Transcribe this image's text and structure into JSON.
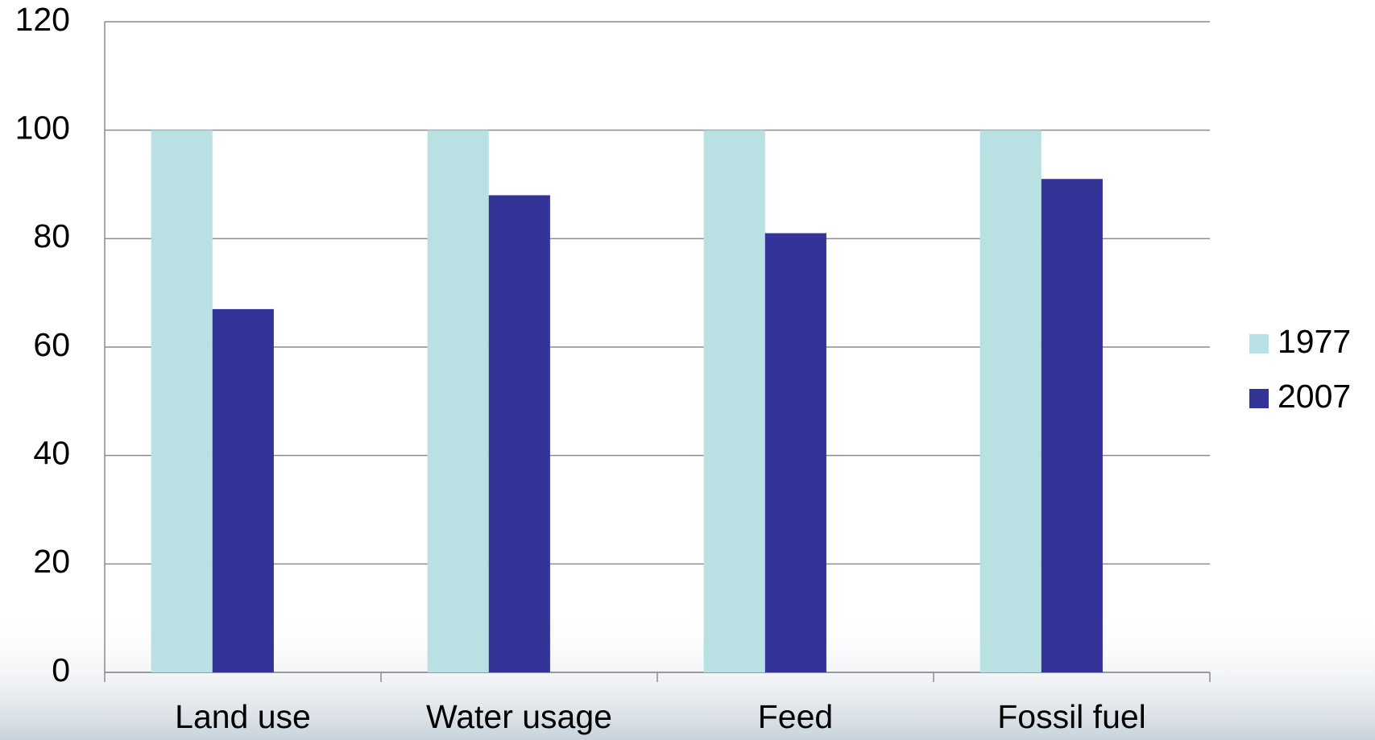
{
  "chart_data": {
    "type": "bar",
    "categories": [
      "Land use",
      "Water usage",
      "Feed",
      "Fossil fuel"
    ],
    "series": [
      {
        "name": "1977",
        "color": "#b9e0e2",
        "values": [
          100,
          100,
          100,
          100
        ]
      },
      {
        "name": "2007",
        "color": "#343397",
        "values": [
          67,
          88,
          81,
          91
        ]
      }
    ],
    "ylim": [
      0,
      120
    ],
    "yticks": [
      0,
      20,
      40,
      60,
      80,
      100,
      120
    ],
    "grid": true,
    "legend": "right"
  }
}
